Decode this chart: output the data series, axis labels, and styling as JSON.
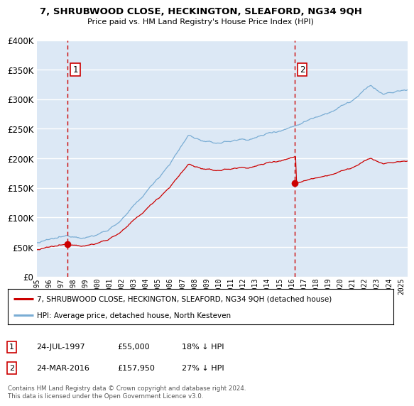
{
  "title": "7, SHRUBWOOD CLOSE, HECKINGTON, SLEAFORD, NG34 9QH",
  "subtitle": "Price paid vs. HM Land Registry's House Price Index (HPI)",
  "legend_label_red": "7, SHRUBWOOD CLOSE, HECKINGTON, SLEAFORD, NG34 9QH (detached house)",
  "legend_label_blue": "HPI: Average price, detached house, North Kesteven",
  "footnote": "Contains HM Land Registry data © Crown copyright and database right 2024.\nThis data is licensed under the Open Government Licence v3.0.",
  "table": [
    {
      "num": 1,
      "date": "24-JUL-1997",
      "price": "£55,000",
      "hpi": "18% ↓ HPI"
    },
    {
      "num": 2,
      "date": "24-MAR-2016",
      "price": "£157,950",
      "hpi": "27% ↓ HPI"
    }
  ],
  "sale1_year": 1997.56,
  "sale1_price": 55000,
  "sale2_year": 2016.23,
  "sale2_price": 157950,
  "ylim": [
    0,
    400000
  ],
  "xlim_start": 1995.0,
  "xlim_end": 2025.5,
  "plot_bg_color": "#dce8f5",
  "grid_color": "#ffffff",
  "red_color": "#cc0000",
  "blue_color": "#7aadd4",
  "dashed_color": "#cc0000"
}
